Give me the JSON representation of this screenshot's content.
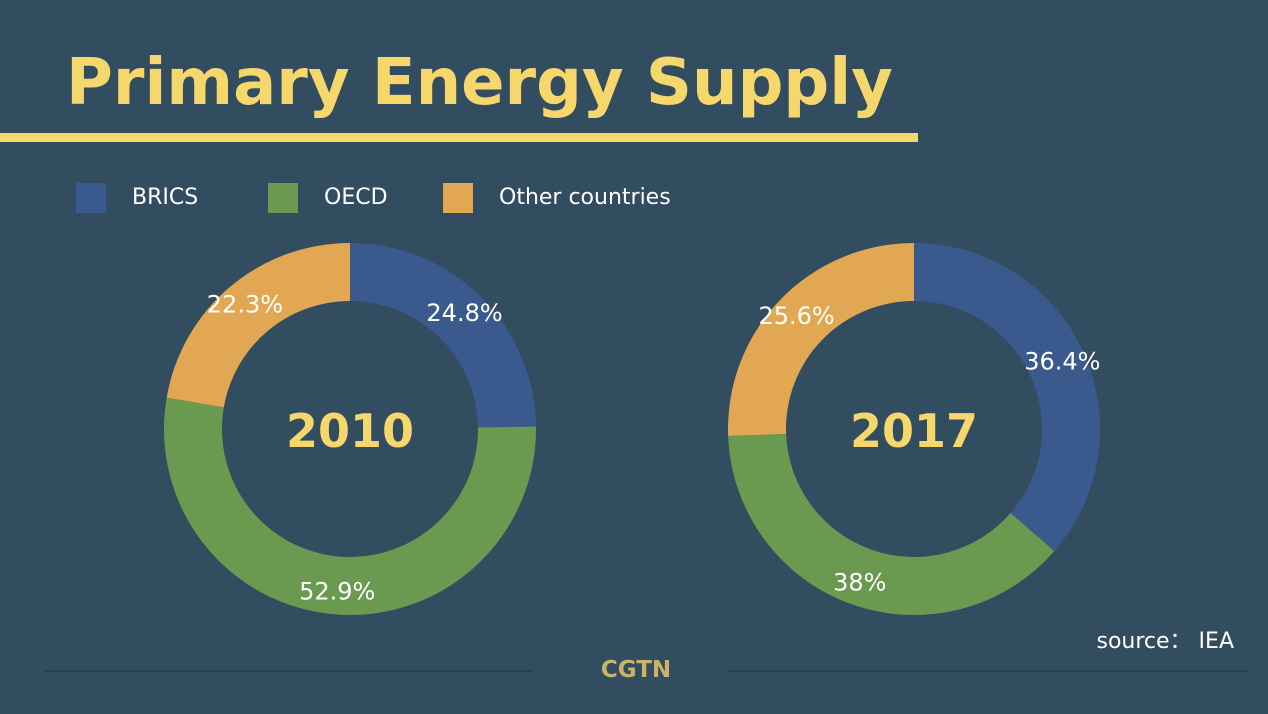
{
  "title": "Primary Energy Supply",
  "legend": [
    {
      "label": "BRICS",
      "color": "#3a5a8e"
    },
    {
      "label": "OECD",
      "color": "#6a9a4f"
    },
    {
      "label": "Other countries",
      "color": "#e2a752"
    }
  ],
  "chart_data": [
    {
      "type": "pie",
      "donut": true,
      "center_label": "2010",
      "categories": [
        "BRICS",
        "OECD",
        "Other countries"
      ],
      "values": [
        24.8,
        52.9,
        22.3
      ],
      "data_labels": [
        "24.8%",
        "52.9%",
        "22.3%"
      ],
      "colors": [
        "#3a5a8e",
        "#6a9a4f",
        "#e2a752"
      ]
    },
    {
      "type": "pie",
      "donut": true,
      "center_label": "2017",
      "categories": [
        "BRICS",
        "OECD",
        "Other countries"
      ],
      "values": [
        36.4,
        38,
        25.6
      ],
      "data_labels": [
        "36.4%",
        "38%",
        "25.6%"
      ],
      "colors": [
        "#3a5a8e",
        "#6a9a4f",
        "#e2a752"
      ]
    }
  ],
  "source": "source： IEA",
  "brand": "CGTN"
}
